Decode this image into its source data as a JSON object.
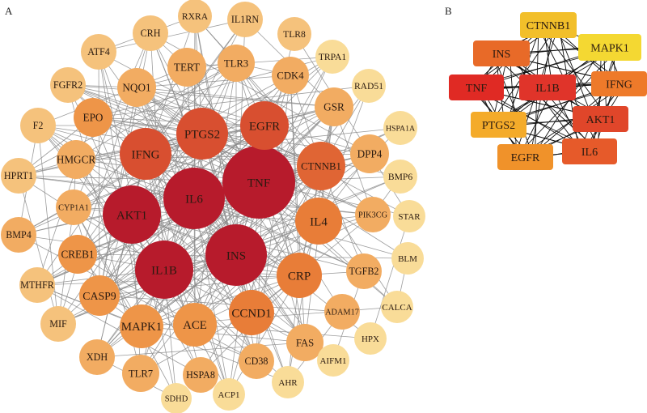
{
  "panel_a": {
    "label": "A",
    "edge_color": "#8c8c8c",
    "tiers": {
      "hub": "#b71b2c",
      "high": "#d84f30",
      "high2": "#e06534",
      "mid": "#e87d38",
      "mid2": "#ee9548",
      "low": "#f2ac62",
      "low2": "#f5c27c",
      "pale": "#f9dc98"
    },
    "nodes": [
      {
        "label": "TNF",
        "tier": "hub"
      },
      {
        "label": "IL6",
        "tier": "hub"
      },
      {
        "label": "AKT1",
        "tier": "hub"
      },
      {
        "label": "IL1B",
        "tier": "hub"
      },
      {
        "label": "INS",
        "tier": "hub"
      },
      {
        "label": "IFNG",
        "tier": "high"
      },
      {
        "label": "PTGS2",
        "tier": "high"
      },
      {
        "label": "EGFR",
        "tier": "high"
      },
      {
        "label": "CTNNB1",
        "tier": "high2"
      },
      {
        "label": "IL4",
        "tier": "mid"
      },
      {
        "label": "CRP",
        "tier": "mid"
      },
      {
        "label": "CCND1",
        "tier": "mid"
      },
      {
        "label": "ACE",
        "tier": "mid2"
      },
      {
        "label": "MAPK1",
        "tier": "mid2"
      },
      {
        "label": "CASP9",
        "tier": "mid2"
      },
      {
        "label": "CREB1",
        "tier": "mid2"
      },
      {
        "label": "CYP1A1",
        "tier": "low"
      },
      {
        "label": "HMGCR",
        "tier": "low"
      },
      {
        "label": "EPO",
        "tier": "mid2"
      },
      {
        "label": "NQO1",
        "tier": "low"
      },
      {
        "label": "TERT",
        "tier": "low"
      },
      {
        "label": "TLR3",
        "tier": "low"
      },
      {
        "label": "CDK4",
        "tier": "low"
      },
      {
        "label": "GSR",
        "tier": "low"
      },
      {
        "label": "DPP4",
        "tier": "low"
      },
      {
        "label": "PIK3CG",
        "tier": "low"
      },
      {
        "label": "TGFB2",
        "tier": "low"
      },
      {
        "label": "ADAM17",
        "tier": "low"
      },
      {
        "label": "FAS",
        "tier": "low"
      },
      {
        "label": "CD38",
        "tier": "low"
      },
      {
        "label": "HSPA8",
        "tier": "low"
      },
      {
        "label": "TLR7",
        "tier": "low"
      },
      {
        "label": "XDH",
        "tier": "low"
      },
      {
        "label": "MIF",
        "tier": "low2"
      },
      {
        "label": "MTHFR",
        "tier": "low2"
      },
      {
        "label": "BMP4",
        "tier": "low"
      },
      {
        "label": "HPRT1",
        "tier": "low2"
      },
      {
        "label": "F2",
        "tier": "low2"
      },
      {
        "label": "FGFR2",
        "tier": "low2"
      },
      {
        "label": "ATF4",
        "tier": "low2"
      },
      {
        "label": "CRH",
        "tier": "low2"
      },
      {
        "label": "RXRA",
        "tier": "low2"
      },
      {
        "label": "IL1RN",
        "tier": "low2"
      },
      {
        "label": "TLR8",
        "tier": "low2"
      },
      {
        "label": "TRPA1",
        "tier": "pale"
      },
      {
        "label": "RAD51",
        "tier": "pale"
      },
      {
        "label": "HSPA1A",
        "tier": "pale"
      },
      {
        "label": "BMP6",
        "tier": "pale"
      },
      {
        "label": "STAR",
        "tier": "pale"
      },
      {
        "label": "BLM",
        "tier": "pale"
      },
      {
        "label": "CALCA",
        "tier": "pale"
      },
      {
        "label": "HPX",
        "tier": "pale"
      },
      {
        "label": "AIFM1",
        "tier": "pale"
      },
      {
        "label": "AHR",
        "tier": "pale"
      },
      {
        "label": "ACP1",
        "tier": "pale"
      },
      {
        "label": "SDHD",
        "tier": "pale"
      }
    ]
  },
  "panel_b": {
    "label": "B",
    "edge_color": "#111111",
    "nodes": [
      {
        "label": "CTNNB1",
        "color": "#f2bf2a"
      },
      {
        "label": "INS",
        "color": "#e86a28"
      },
      {
        "label": "MAPK1",
        "color": "#f4d832"
      },
      {
        "label": "TNF",
        "color": "#e02a24"
      },
      {
        "label": "IL1B",
        "color": "#e0342a"
      },
      {
        "label": "IFNG",
        "color": "#ee7a2a"
      },
      {
        "label": "PTGS2",
        "color": "#f4ab2a"
      },
      {
        "label": "AKT1",
        "color": "#e0462a"
      },
      {
        "label": "EGFR",
        "color": "#f0922a"
      },
      {
        "label": "IL6",
        "color": "#e65a2a"
      }
    ]
  }
}
